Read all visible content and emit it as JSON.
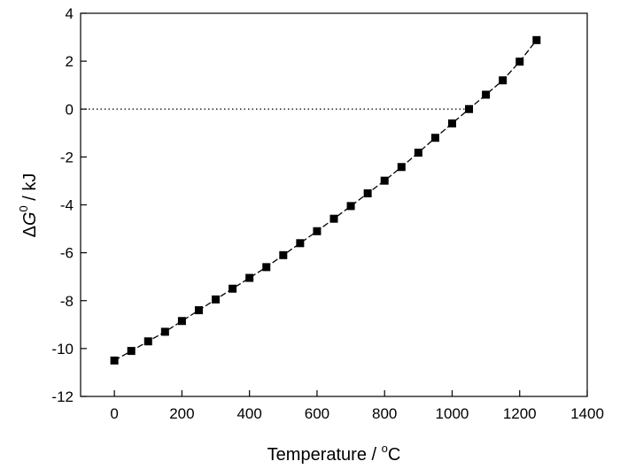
{
  "chart_data": {
    "type": "line",
    "title": "",
    "xlabel": {
      "prefix": "Temperature / ",
      "superscript": "o",
      "suffix": "C"
    },
    "ylabel": {
      "delta": "Δ",
      "symbol": "G",
      "superscript": "0",
      "suffix": " / kJ"
    },
    "xlim": [
      -100,
      1400
    ],
    "ylim": [
      -12,
      4
    ],
    "xticks": [
      0,
      200,
      400,
      600,
      800,
      1000,
      1200,
      1400
    ],
    "yticks": [
      -12,
      -10,
      -8,
      -6,
      -4,
      -2,
      0,
      2,
      4
    ],
    "x_tick_labels": [
      "0",
      "200",
      "400",
      "600",
      "800",
      "1000",
      "1200",
      "1400"
    ],
    "y_tick_labels": [
      "-12",
      "-10",
      "-8",
      "-6",
      "-4",
      "-2",
      "0",
      "2",
      "4"
    ],
    "grid": false,
    "legend": "none",
    "reference_line": {
      "y": 0,
      "from_x": -100,
      "to_x": 1050,
      "style": "dotted"
    },
    "series": [
      {
        "marker": "square",
        "line_style": "dashed",
        "color": "#000000",
        "x": [
          0,
          50,
          100,
          150,
          200,
          250,
          300,
          350,
          400,
          450,
          500,
          550,
          600,
          650,
          700,
          750,
          800,
          850,
          900,
          950,
          1000,
          1050,
          1100,
          1150,
          1200,
          1250
        ],
        "values": [
          -10.5,
          -10.1,
          -9.7,
          -9.3,
          -8.85,
          -8.4,
          -7.95,
          -7.5,
          -7.05,
          -6.6,
          -6.1,
          -5.6,
          -5.1,
          -4.58,
          -4.05,
          -3.52,
          -2.99,
          -2.42,
          -1.82,
          -1.2,
          -0.6,
          0.0,
          0.6,
          1.2,
          1.98,
          2.88
        ]
      }
    ]
  }
}
